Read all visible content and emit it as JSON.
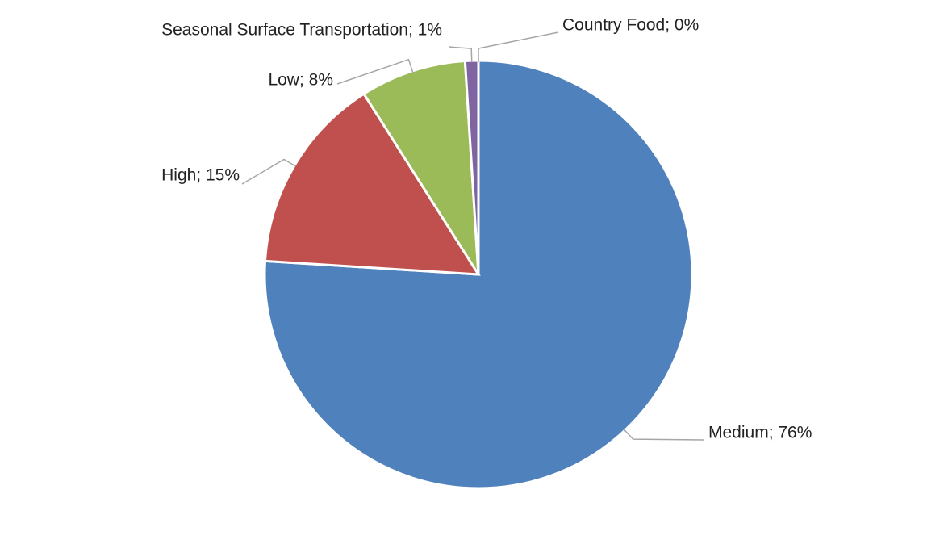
{
  "chart_data": {
    "type": "pie",
    "values": [
      76,
      15,
      8,
      1,
      0
    ],
    "value_labels": [
      "Medium; 76%",
      "High; 15%",
      "Low; 8%",
      "Seasonal Surface Transportation; 1%",
      "Country Food; 0%"
    ],
    "colors": [
      "#4f81bd",
      "#c0504d",
      "#9bbb59",
      "#8064a2",
      "#4bacc6"
    ]
  }
}
